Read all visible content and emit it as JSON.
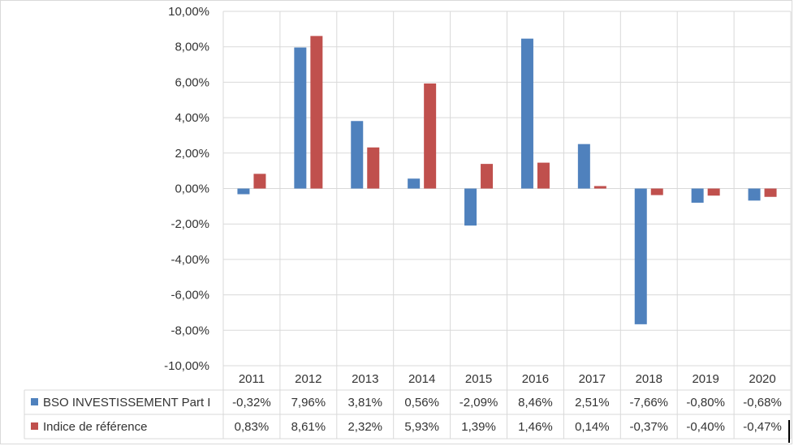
{
  "chart_data": {
    "type": "bar",
    "title": "",
    "xlabel": "",
    "ylabel": "",
    "ylim": [
      -10,
      10
    ],
    "y_ticks": [
      "10,00%",
      "8,00%",
      "6,00%",
      "4,00%",
      "2,00%",
      "0,00%",
      "-2,00%",
      "-4,00%",
      "-6,00%",
      "-8,00%",
      "-10,00%"
    ],
    "y_tick_values": [
      10,
      8,
      6,
      4,
      2,
      0,
      -2,
      -4,
      -6,
      -8,
      -10
    ],
    "grid": true,
    "legend": "data-table",
    "categories": [
      "2011",
      "2012",
      "2013",
      "2014",
      "2015",
      "2016",
      "2017",
      "2018",
      "2019",
      "2020"
    ],
    "series": [
      {
        "name": "BSO INVESTISSEMENT Part I",
        "color": "#4f81bd",
        "values": [
          -0.32,
          7.96,
          3.81,
          0.56,
          -2.09,
          8.46,
          2.51,
          -7.66,
          -0.8,
          -0.68
        ],
        "labels": [
          "-0,32%",
          "7,96%",
          "3,81%",
          "0,56%",
          "-2,09%",
          "8,46%",
          "2,51%",
          "-7,66%",
          "-0,80%",
          "-0,68%"
        ]
      },
      {
        "name": "Indice de référence",
        "color": "#c0504d",
        "values": [
          0.83,
          8.61,
          2.32,
          5.93,
          1.39,
          1.46,
          0.14,
          -0.37,
          -0.4,
          -0.47
        ],
        "labels": [
          "0,83%",
          "8,61%",
          "2,32%",
          "5,93%",
          "1,39%",
          "1,46%",
          "0,14%",
          "-0,37%",
          "-0,40%",
          "-0,47%"
        ]
      }
    ]
  }
}
